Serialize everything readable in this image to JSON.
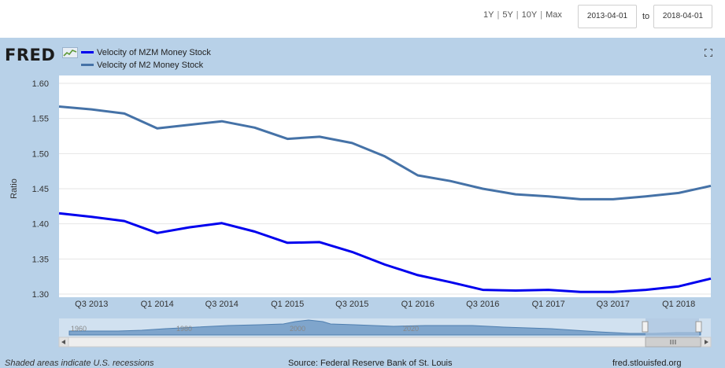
{
  "controls": {
    "ranges": [
      "1Y",
      "5Y",
      "10Y",
      "Max"
    ],
    "start_date": "2013-04-01",
    "to_label": "to",
    "end_date": "2018-04-01"
  },
  "logo": {
    "text": "FRED"
  },
  "colors": {
    "mzm": "#0000ee",
    "m2": "#4572a7",
    "panel": "#b8d1e8",
    "navigator_fill": "#7fa5cc"
  },
  "chart_data": {
    "type": "line",
    "ylabel": "Ratio",
    "ylim": [
      1.3,
      1.6
    ],
    "yticks": [
      "1.60",
      "1.55",
      "1.50",
      "1.45",
      "1.40",
      "1.35",
      "1.30"
    ],
    "x_range": [
      "2013-04-01",
      "2018-04-01"
    ],
    "x_tick_labels": [
      "Q3 2013",
      "Q1 2014",
      "Q3 2014",
      "Q1 2015",
      "Q3 2015",
      "Q1 2016",
      "Q3 2016",
      "Q1 2017",
      "Q3 2017",
      "Q1 2018"
    ],
    "x": [
      "2013-04-01",
      "2013-07-01",
      "2013-10-01",
      "2014-01-01",
      "2014-04-01",
      "2014-07-01",
      "2014-10-01",
      "2015-01-01",
      "2015-04-01",
      "2015-07-01",
      "2015-10-01",
      "2016-01-01",
      "2016-04-01",
      "2016-07-01",
      "2016-10-01",
      "2017-01-01",
      "2017-04-01",
      "2017-07-01",
      "2017-10-01",
      "2018-01-01",
      "2018-04-01"
    ],
    "series": [
      {
        "name": "Velocity of MZM Money Stock",
        "values": [
          1.415,
          1.41,
          1.404,
          1.387,
          1.395,
          1.401,
          1.389,
          1.373,
          1.374,
          1.36,
          1.342,
          1.327,
          1.317,
          1.306,
          1.305,
          1.306,
          1.303,
          1.303,
          1.306,
          1.311,
          1.322
        ]
      },
      {
        "name": "Velocity of M2 Money Stock",
        "values": [
          1.567,
          1.563,
          1.557,
          1.536,
          1.541,
          1.546,
          1.537,
          1.521,
          1.524,
          1.515,
          1.496,
          1.469,
          1.461,
          1.45,
          1.442,
          1.439,
          1.435,
          1.435,
          1.439,
          1.444,
          1.454
        ]
      }
    ],
    "navigator_labels": [
      "1960",
      "1980",
      "2000",
      "2020"
    ]
  },
  "footer": {
    "recessions_note": "Shaded areas indicate U.S. recessions",
    "source": "Source: Federal Reserve Bank of St. Louis",
    "url": "fred.stlouisfed.org"
  }
}
